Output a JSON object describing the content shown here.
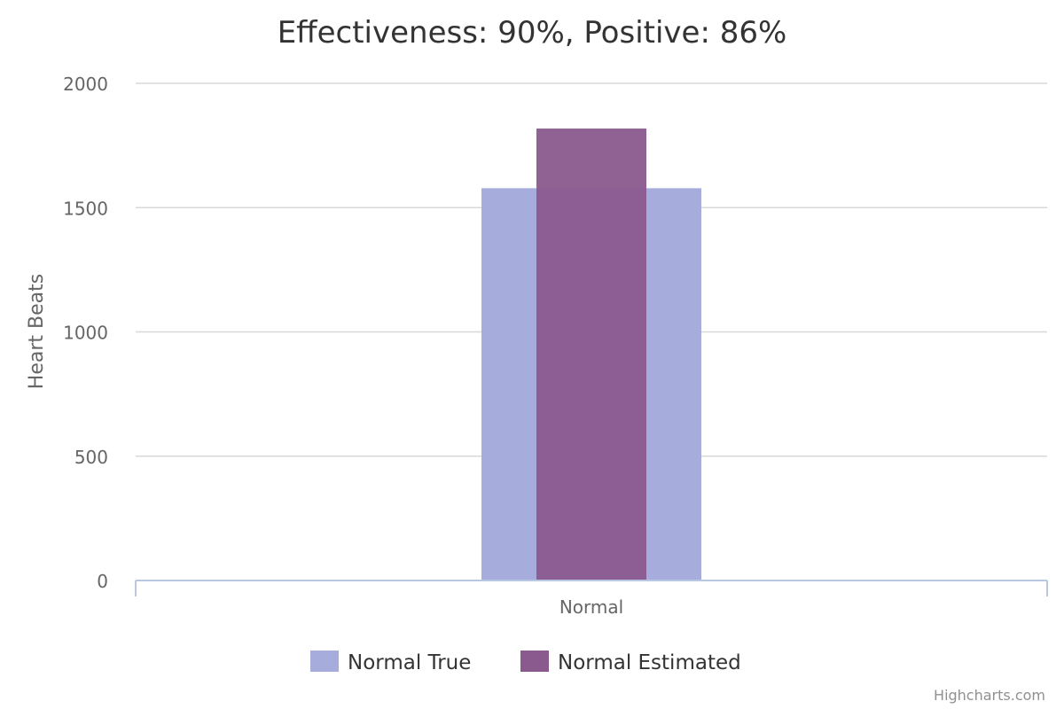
{
  "chart_data": {
    "type": "bar",
    "title": "Effectiveness: 90%, Positive: 86%",
    "xlabel": "",
    "ylabel": "Heart Beats",
    "categories": [
      "Normal"
    ],
    "ylim": [
      0,
      2000
    ],
    "yticks": [
      0,
      500,
      1000,
      1500,
      2000
    ],
    "grid": true,
    "legend_position": "bottom",
    "series": [
      {
        "name": "Normal True",
        "values": [
          1578
        ],
        "color": "#a6acdc"
      },
      {
        "name": "Normal Estimated",
        "values": [
          1818
        ],
        "color": "#8a5a8e"
      }
    ]
  },
  "credits": "Highcharts.com"
}
